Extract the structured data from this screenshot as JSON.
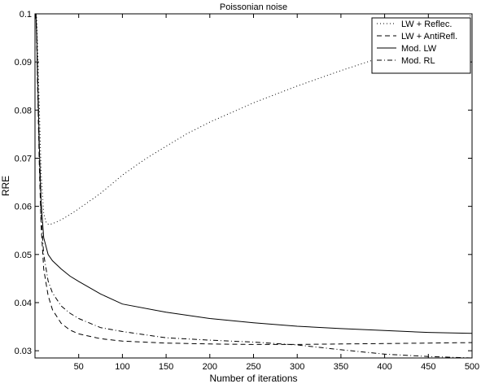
{
  "chart_data": {
    "type": "line",
    "title": "Poissonian noise",
    "xlabel": "Number of iterations",
    "ylabel": "RRE",
    "xlim": [
      0,
      500
    ],
    "ylim": [
      0.0285,
      0.1
    ],
    "xticks": [
      50,
      100,
      150,
      200,
      250,
      300,
      350,
      400,
      450,
      500
    ],
    "yticks": [
      0.03,
      0.04,
      0.05,
      0.06,
      0.07,
      0.08,
      0.09,
      0.1
    ],
    "ytick_labels": [
      "0.03",
      "0.04",
      "0.05",
      "0.06",
      "0.07",
      "0.08",
      "0.09",
      "0.1"
    ],
    "grid": false,
    "legend_position": "top-right",
    "series": [
      {
        "name": "LW + Reflec.",
        "dash": "dotted",
        "x": [
          1,
          2,
          3,
          5,
          7,
          10,
          13,
          16,
          20,
          30,
          40,
          50,
          75,
          100,
          125,
          150,
          175,
          200,
          250,
          300,
          350,
          400,
          450,
          475,
          490,
          500
        ],
        "y": [
          0.1,
          0.099,
          0.093,
          0.08,
          0.067,
          0.0585,
          0.0565,
          0.0562,
          0.0564,
          0.0572,
          0.0583,
          0.0595,
          0.0627,
          0.0665,
          0.0697,
          0.0725,
          0.0752,
          0.0775,
          0.0815,
          0.085,
          0.0882,
          0.0912,
          0.094,
          0.0965,
          0.098,
          0.1
        ]
      },
      {
        "name": "LW + AntiRefl.",
        "dash": "dashed",
        "x": [
          1,
          2,
          3,
          5,
          7,
          10,
          15,
          20,
          30,
          40,
          50,
          75,
          100,
          150,
          200,
          250,
          300,
          350,
          400,
          450,
          500
        ],
        "y": [
          0.1,
          0.095,
          0.085,
          0.068,
          0.056,
          0.047,
          0.0415,
          0.0385,
          0.0357,
          0.0343,
          0.0335,
          0.0325,
          0.032,
          0.0316,
          0.0314,
          0.0313,
          0.0313,
          0.0314,
          0.0315,
          0.0316,
          0.0317
        ]
      },
      {
        "name": "Mod. LW",
        "dash": "solid",
        "x": [
          1,
          2,
          3,
          5,
          7,
          10,
          15,
          20,
          30,
          40,
          50,
          75,
          100,
          150,
          200,
          250,
          300,
          350,
          400,
          450,
          500
        ],
        "y": [
          0.1,
          0.096,
          0.088,
          0.072,
          0.061,
          0.0535,
          0.05,
          0.0487,
          0.047,
          0.0455,
          0.0444,
          0.0418,
          0.0397,
          0.038,
          0.0367,
          0.0358,
          0.0351,
          0.0346,
          0.0342,
          0.0338,
          0.0336
        ]
      },
      {
        "name": "Mod. RL",
        "dash": "dashdot",
        "x": [
          1,
          2,
          3,
          5,
          7,
          10,
          15,
          20,
          30,
          40,
          50,
          75,
          100,
          150,
          200,
          250,
          300,
          350,
          400,
          450,
          500
        ],
        "y": [
          0.1,
          0.095,
          0.086,
          0.07,
          0.058,
          0.05,
          0.0445,
          0.042,
          0.0393,
          0.0378,
          0.0367,
          0.0348,
          0.034,
          0.0327,
          0.0322,
          0.0318,
          0.0312,
          0.0302,
          0.0293,
          0.0288,
          0.0285
        ]
      }
    ]
  }
}
